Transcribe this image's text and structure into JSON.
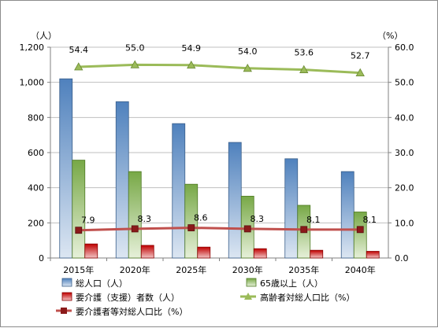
{
  "chart_data": {
    "type": "bar",
    "categories": [
      "2015年",
      "2020年",
      "2025年",
      "2030年",
      "2035年",
      "2040年"
    ],
    "y_left": {
      "unit": "（人）",
      "min": 0,
      "max": 1200,
      "step": 200,
      "tick_labels": [
        "0",
        "200",
        "400",
        "600",
        "800",
        "1,000",
        "1,200"
      ]
    },
    "y_right": {
      "unit": "（%）",
      "min": 0,
      "max": 60,
      "step": 10,
      "tick_labels": [
        "0.0",
        "10.0",
        "20.0",
        "30.0",
        "40.0",
        "50.0",
        "60.0"
      ]
    },
    "grid": true,
    "legend_position": "bottom",
    "series": [
      {
        "name": "総人口（人）",
        "kind": "bar",
        "axis": "left",
        "values": [
          1020,
          890,
          765,
          658,
          565,
          492
        ],
        "color_top": "#4f81bd",
        "color_bottom": "#dce6f2",
        "stroke": "#3a5f8a"
      },
      {
        "name": "65歳以上（人）",
        "kind": "bar",
        "axis": "left",
        "values": [
          557,
          492,
          420,
          352,
          300,
          262
        ],
        "color_top": "#77a846",
        "color_bottom": "#e6f0d9",
        "stroke": "#4f7a24"
      },
      {
        "name": "要介護（支援）者数（人）",
        "kind": "bar",
        "axis": "left",
        "values": [
          80,
          72,
          62,
          53,
          44,
          38
        ],
        "color_top": "#c00000",
        "color_bottom": "#f2c4c4",
        "stroke": "#8b0000"
      },
      {
        "name": "高齢者対総人口比（%）",
        "kind": "line",
        "axis": "right",
        "values": [
          54.4,
          55.0,
          54.9,
          54.0,
          53.6,
          52.7
        ],
        "labels": [
          "54.4",
          "55.0",
          "54.9",
          "54.0",
          "53.6",
          "52.7"
        ],
        "color": "#9bbb59",
        "marker": "triangle"
      },
      {
        "name": "要介護者等対総人口比（%）",
        "kind": "line",
        "axis": "right",
        "values": [
          7.9,
          8.3,
          8.6,
          8.3,
          8.1,
          8.1
        ],
        "labels": [
          "7.9",
          "8.3",
          "8.6",
          "8.3",
          "8.1",
          "8.1"
        ],
        "color": "#c0504d",
        "marker": "square"
      }
    ]
  }
}
